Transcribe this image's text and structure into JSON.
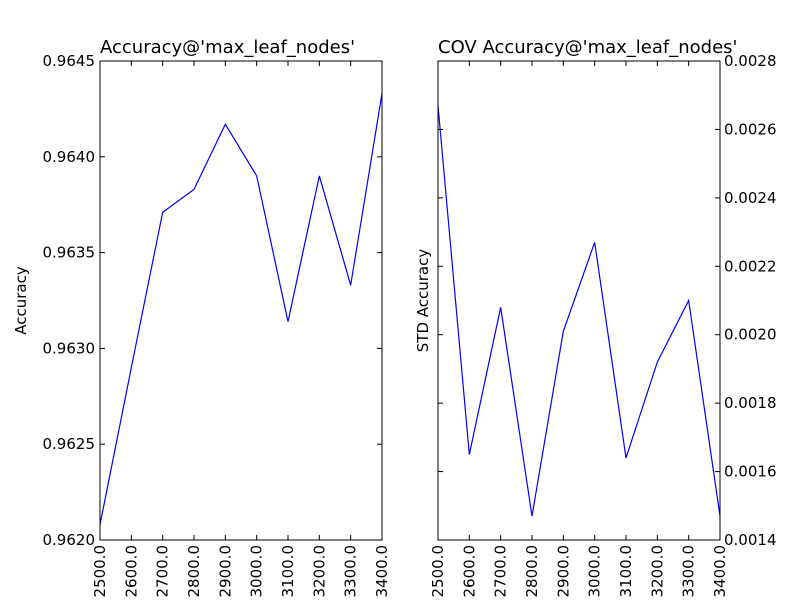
{
  "chart_data": [
    {
      "type": "line",
      "title": "Accuracy@'max_leaf_nodes'",
      "xlabel": "",
      "ylabel": "Accuracy",
      "x": [
        2500,
        2600,
        2700,
        2800,
        2900,
        3000,
        3100,
        3200,
        3300,
        3400
      ],
      "x_tick_labels": [
        "2500.0",
        "2600.0",
        "2700.0",
        "2800.0",
        "2900.0",
        "3000.0",
        "3100.0",
        "3200.0",
        "3300.0",
        "3400.0"
      ],
      "xlim": [
        2500,
        3400
      ],
      "ylim": [
        0.962,
        0.9645
      ],
      "y_axis_side": "left",
      "y_ticks": [
        0.962,
        0.9625,
        0.963,
        0.9635,
        0.964,
        0.9645
      ],
      "y_tick_labels": [
        "0.9620",
        "0.9625",
        "0.9630",
        "0.9635",
        "0.9640",
        "0.9645"
      ],
      "series": [
        {
          "color": "#0000ff",
          "values": [
            0.96208,
            0.9629,
            0.96371,
            0.96383,
            0.96417,
            0.9639,
            0.96314,
            0.9639,
            0.96333,
            0.96433
          ]
        }
      ],
      "grid": false
    },
    {
      "type": "line",
      "title": "COV Accuracy@'max_leaf_nodes'",
      "xlabel": "",
      "ylabel": "STD Accuracy",
      "x": [
        2500,
        2600,
        2700,
        2800,
        2900,
        3000,
        3100,
        3200,
        3300,
        3400
      ],
      "x_tick_labels": [
        "2500.0",
        "2600.0",
        "2700.0",
        "2800.0",
        "2900.0",
        "3000.0",
        "3100.0",
        "3200.0",
        "3300.0",
        "3400.0"
      ],
      "xlim": [
        2500,
        3400
      ],
      "ylim": [
        0.0014,
        0.0028
      ],
      "y_axis_side": "right",
      "y_ticks": [
        0.0014,
        0.0016,
        0.0018,
        0.002,
        0.0022,
        0.0024,
        0.0026,
        0.0028
      ],
      "y_tick_labels": [
        "0.0014",
        "0.0016",
        "0.0018",
        "0.0020",
        "0.0022",
        "0.0024",
        "0.0026",
        "0.0028"
      ],
      "series": [
        {
          "color": "#0000ff",
          "values": [
            0.00267,
            0.00165,
            0.00208,
            0.00147,
            0.00201,
            0.00227,
            0.00164,
            0.00192,
            0.0021,
            0.00147
          ]
        }
      ],
      "grid": false
    }
  ]
}
